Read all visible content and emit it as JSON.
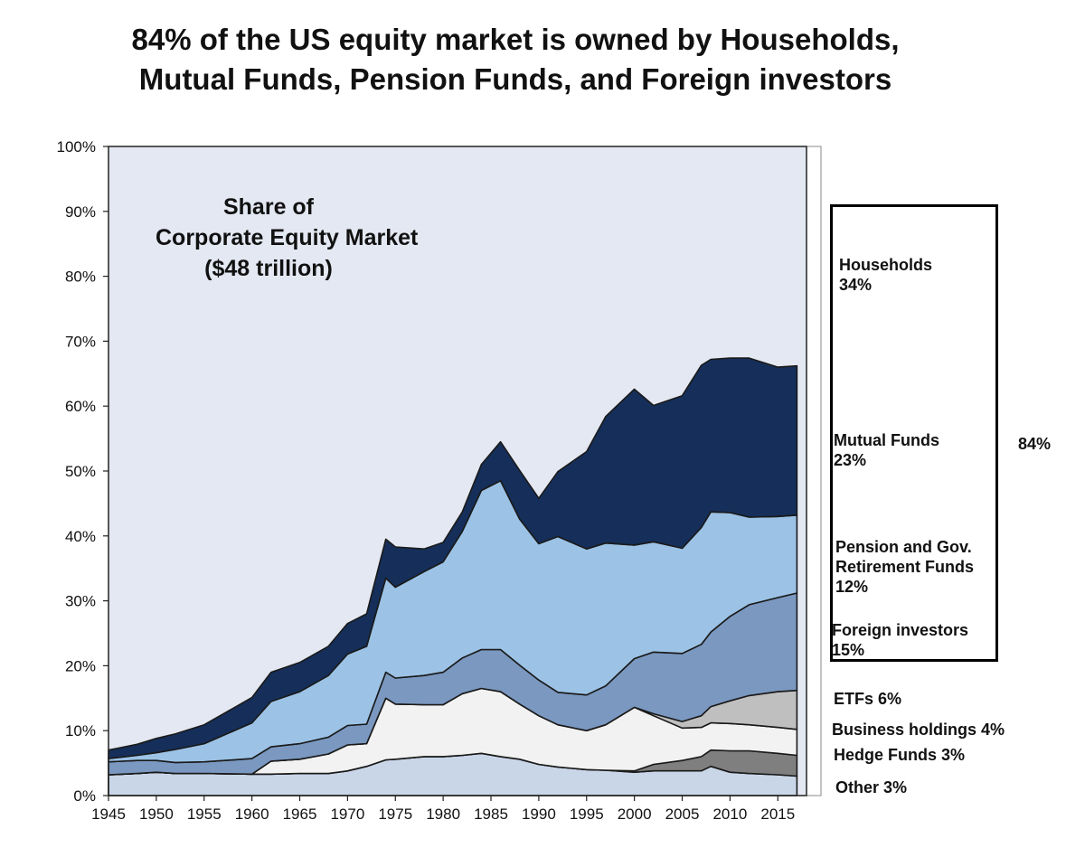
{
  "title_lines": [
    "84% of the US equity market is owned by Households,",
    "Mutual Funds, Pension Funds, and Foreign investors"
  ],
  "annotation_lines": [
    "Share of",
    "Corporate Equity Market",
    "($48 trillion)"
  ],
  "group_total_label": "84%",
  "chart_data": {
    "type": "area",
    "stacked": true,
    "x_label": "",
    "y_label": "",
    "xlim": [
      1945,
      2018
    ],
    "ylim": [
      0,
      100
    ],
    "y_ticks": [
      "0%",
      "10%",
      "20%",
      "30%",
      "40%",
      "50%",
      "60%",
      "70%",
      "80%",
      "90%",
      "100%"
    ],
    "x_ticks": [
      "1945",
      "1950",
      "1955",
      "1960",
      "1965",
      "1970",
      "1975",
      "1980",
      "1985",
      "1990",
      "1995",
      "2000",
      "2005",
      "2010",
      "2015"
    ],
    "grid": false,
    "background_region_label": "Households",
    "x": [
      1945,
      1948,
      1950,
      1952,
      1955,
      1960,
      1962,
      1965,
      1968,
      1970,
      1972,
      1974,
      1975,
      1978,
      1980,
      1982,
      1984,
      1986,
      1988,
      1990,
      1992,
      1995,
      1997,
      2000,
      2002,
      2005,
      2007,
      2008,
      2010,
      2012,
      2015,
      2017
    ],
    "series": [
      {
        "name": "Other 3%",
        "color": "#c9d6e8",
        "values": [
          3.2,
          3.4,
          3.6,
          3.4,
          3.4,
          3.3,
          3.3,
          3.4,
          3.4,
          3.8,
          4.5,
          5.5,
          5.6,
          6.0,
          6.0,
          6.2,
          6.5,
          6.0,
          5.6,
          4.8,
          4.4,
          4.0,
          3.9,
          3.6,
          3.8,
          3.8,
          3.8,
          4.5,
          3.6,
          3.4,
          3.2,
          3.0
        ]
      },
      {
        "name": "Hedge Funds 3%",
        "color": "#7f7f7f",
        "values": [
          0,
          0,
          0,
          0,
          0,
          0,
          0,
          0,
          0,
          0,
          0,
          0,
          0,
          0,
          0,
          0,
          0,
          0,
          0,
          0,
          0,
          0,
          0,
          0.2,
          1.0,
          1.6,
          2.2,
          2.5,
          3.3,
          3.5,
          3.3,
          3.2
        ]
      },
      {
        "name": "Business holdings 4%",
        "color": "#f2f2f2",
        "values": [
          0,
          0,
          0,
          0,
          0,
          0,
          2.0,
          2.2,
          3.0,
          4.0,
          3.5,
          9.5,
          8.5,
          8.0,
          8.0,
          9.5,
          10.0,
          10.0,
          8.5,
          7.5,
          6.5,
          6.0,
          7.0,
          9.8,
          7.5,
          5.0,
          4.5,
          4.2,
          4.2,
          4.0,
          4.0,
          4.0
        ]
      },
      {
        "name": "ETFs 6%",
        "color": "#bfbfbf",
        "values": [
          0,
          0,
          0,
          0,
          0,
          0,
          0,
          0,
          0,
          0,
          0,
          0,
          0,
          0,
          0,
          0,
          0,
          0,
          0,
          0,
          0,
          0,
          0,
          0,
          0.3,
          1.0,
          1.8,
          2.5,
          3.5,
          4.5,
          5.5,
          6.0
        ]
      },
      {
        "name": "Foreign investors 15%",
        "color": "#7a98c0",
        "values": [
          2.0,
          2.0,
          1.8,
          1.7,
          1.8,
          2.4,
          2.2,
          2.4,
          2.6,
          3.0,
          3.0,
          4.0,
          4.0,
          4.5,
          5.0,
          5.5,
          6.0,
          6.5,
          6.0,
          5.5,
          5.0,
          5.5,
          6.0,
          7.5,
          9.5,
          10.5,
          11.0,
          11.5,
          13.0,
          14.0,
          14.5,
          15.0
        ]
      },
      {
        "name": "Pension and Gov. Retirement Funds 12%",
        "color": "#9cc3e6",
        "values": [
          0.5,
          0.8,
          1.2,
          2.0,
          2.8,
          5.5,
          7.0,
          8.0,
          9.5,
          11.0,
          12.0,
          14.5,
          14.0,
          16.0,
          17.0,
          19.5,
          24.5,
          26.0,
          22.5,
          21.0,
          24.0,
          22.5,
          22.0,
          17.5,
          17.0,
          16.2,
          18.0,
          18.5,
          16.0,
          13.5,
          12.5,
          12.0
        ]
      },
      {
        "name": "Mutual Funds 23%",
        "color": "#152f5a",
        "values": [
          1.3,
          1.7,
          2.2,
          2.4,
          2.9,
          3.9,
          4.5,
          4.5,
          4.5,
          4.7,
          5.0,
          6.0,
          6.2,
          3.5,
          3.0,
          3.0,
          4.0,
          6.0,
          7.5,
          7.0,
          10.0,
          15.0,
          19.5,
          24.0,
          21.0,
          23.5,
          25.0,
          23.5,
          23.8,
          24.5,
          23.0,
          23.0
        ]
      }
    ],
    "right_labels": [
      [
        "Households",
        "34%"
      ],
      [
        "Mutual Funds",
        "23%"
      ],
      [
        "Pension and Gov.",
        "Retirement Funds",
        "12%"
      ],
      [
        "Foreign investors",
        "15%"
      ],
      [
        "ETFs 6%"
      ],
      [
        "Business holdings 4%"
      ],
      [
        "Hedge Funds 3%"
      ],
      [
        "Other 3%"
      ]
    ]
  }
}
